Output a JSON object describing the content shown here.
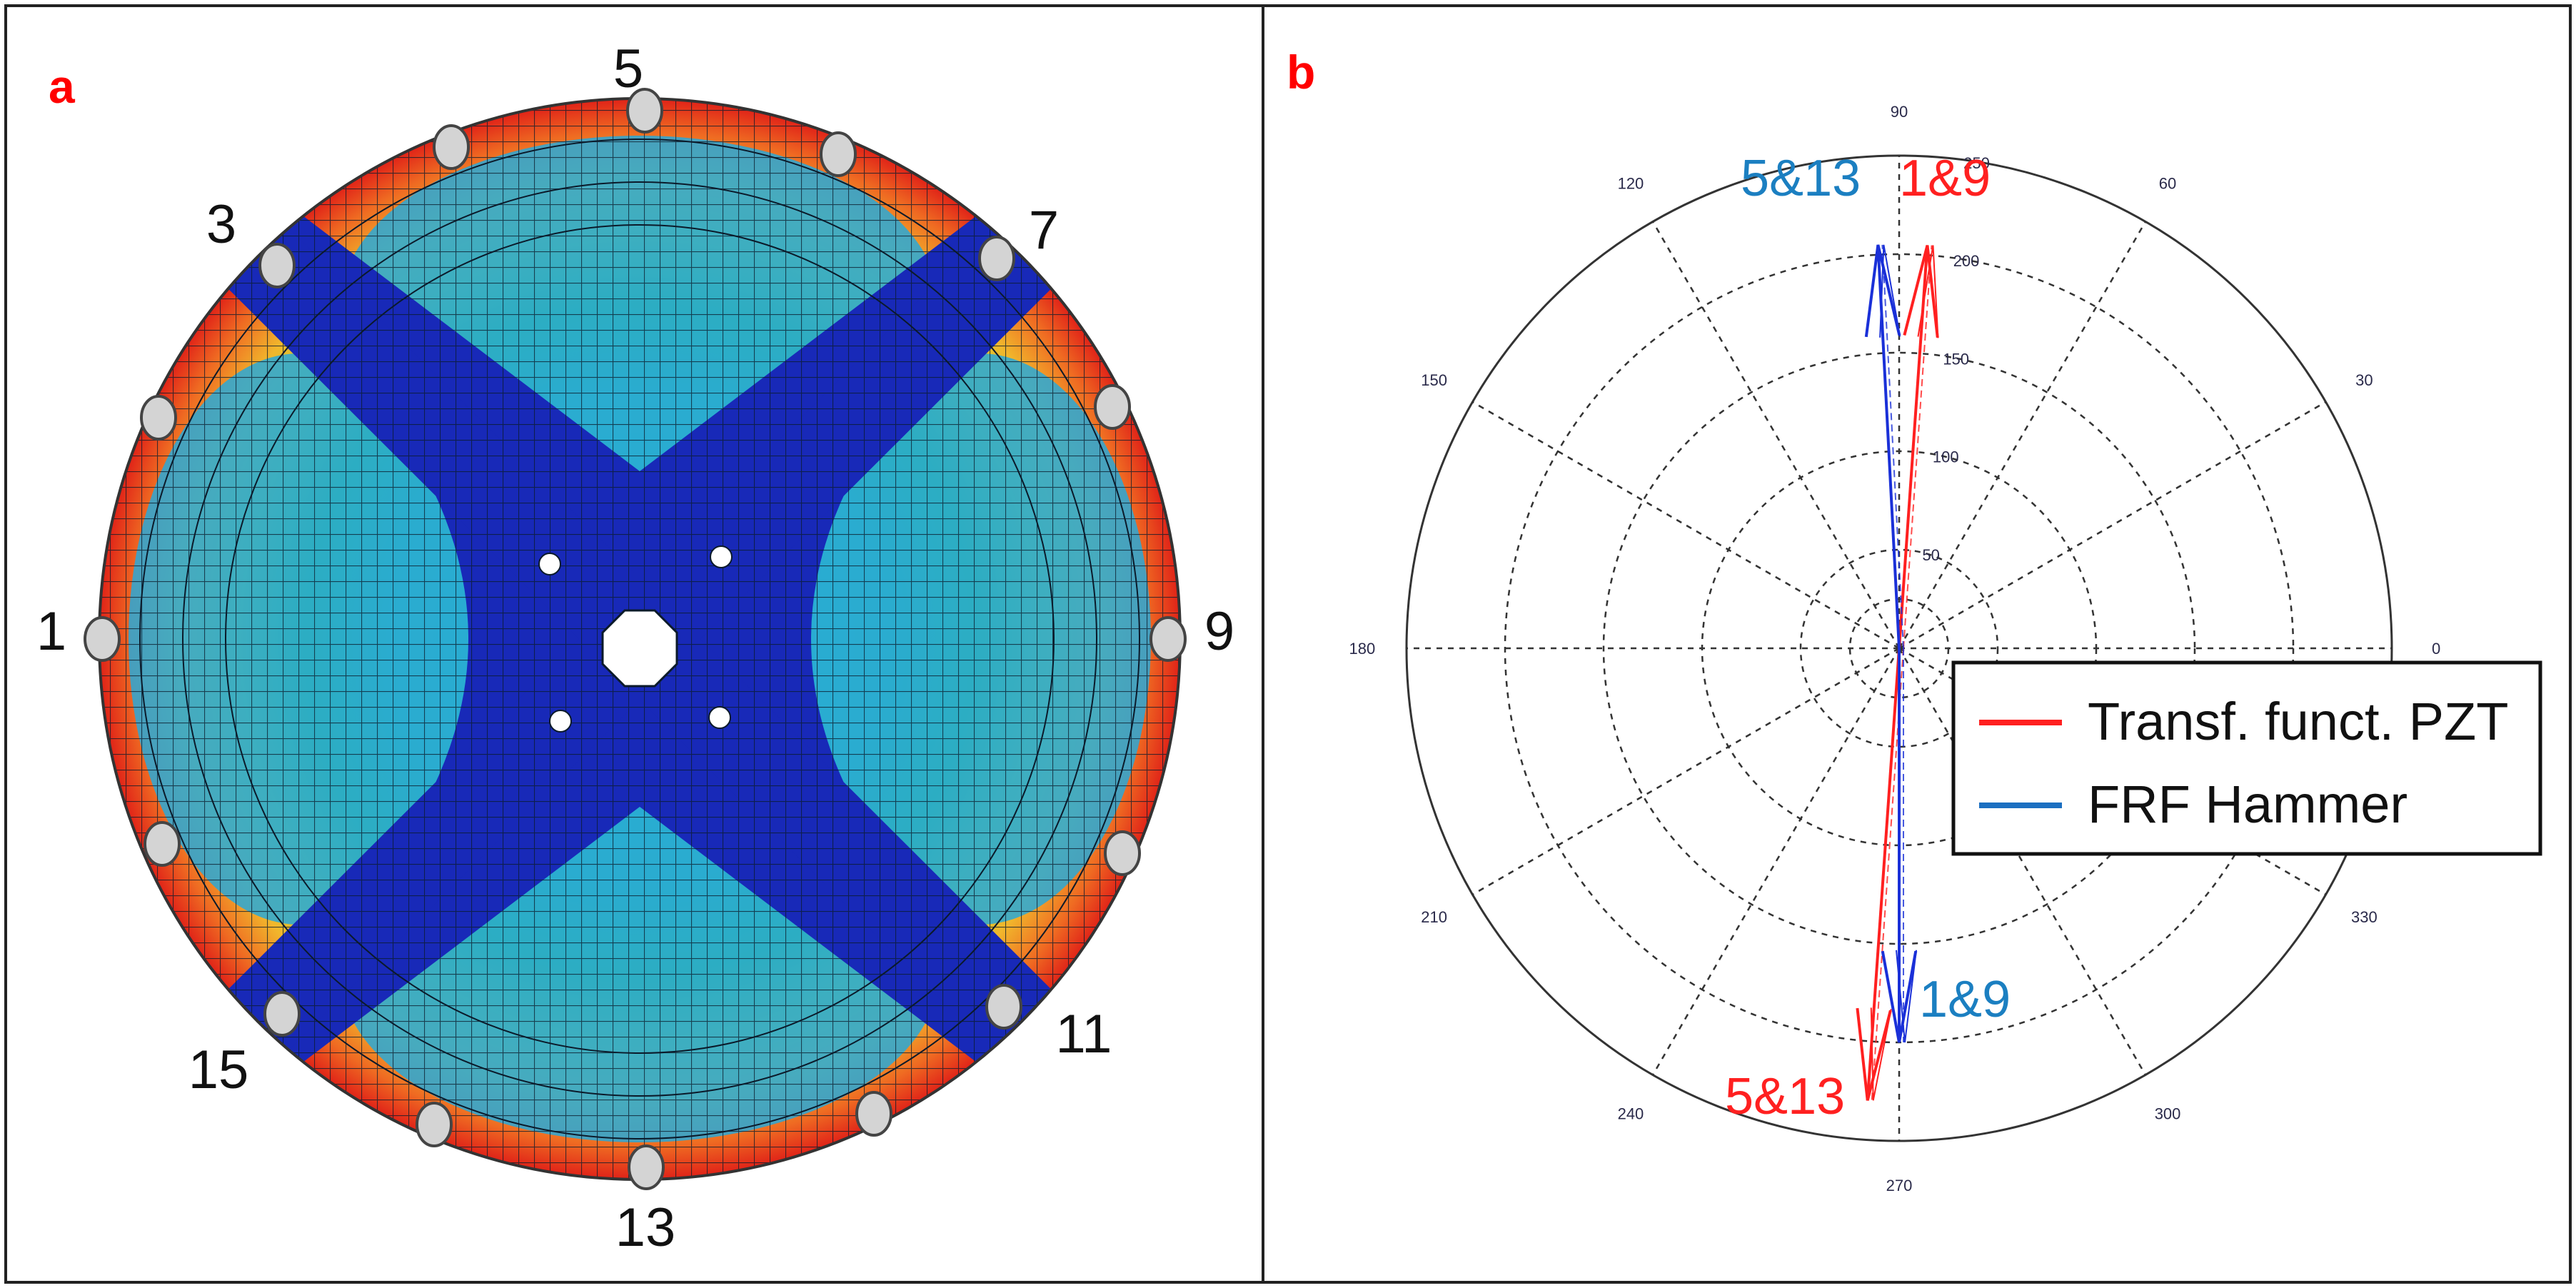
{
  "panel_a": {
    "letter": "a",
    "node_labels": [
      "5",
      "3",
      "7",
      "1",
      "9",
      "15",
      "11",
      "13"
    ]
  },
  "panel_b": {
    "letter": "b",
    "annotations": {
      "top_blue": "5&13",
      "top_red": "1&9",
      "bottom_blue": "1&9",
      "bottom_red": "5&13"
    },
    "legend": {
      "red_label": "Transf. funct. PZT",
      "blue_label": "FRF Hammer"
    },
    "colors": {
      "red": "#ff2020",
      "blue": "#1a30d8",
      "annotation_blue": "#1b7fc1"
    }
  },
  "chart_data": {
    "type": "polar",
    "angle_ticks": [
      "0",
      "30",
      "60",
      "90",
      "120",
      "150",
      "180",
      "210",
      "240",
      "270",
      "300",
      "330"
    ],
    "radius_ticks": [
      "50",
      "100",
      "150",
      "200",
      "250"
    ],
    "rlim": [
      0,
      250
    ],
    "series": [
      {
        "name": "Transf. funct. PZT",
        "vectors": [
          {
            "label": "1&9",
            "angle": 86,
            "magnitude": 205
          },
          {
            "label": "5&13",
            "angle": 266,
            "magnitude": 230
          }
        ]
      },
      {
        "name": "FRF Hammer",
        "vectors": [
          {
            "label": "5&13",
            "angle": 93,
            "magnitude": 205
          },
          {
            "label": "1&9",
            "angle": 270,
            "magnitude": 200
          }
        ]
      }
    ]
  }
}
